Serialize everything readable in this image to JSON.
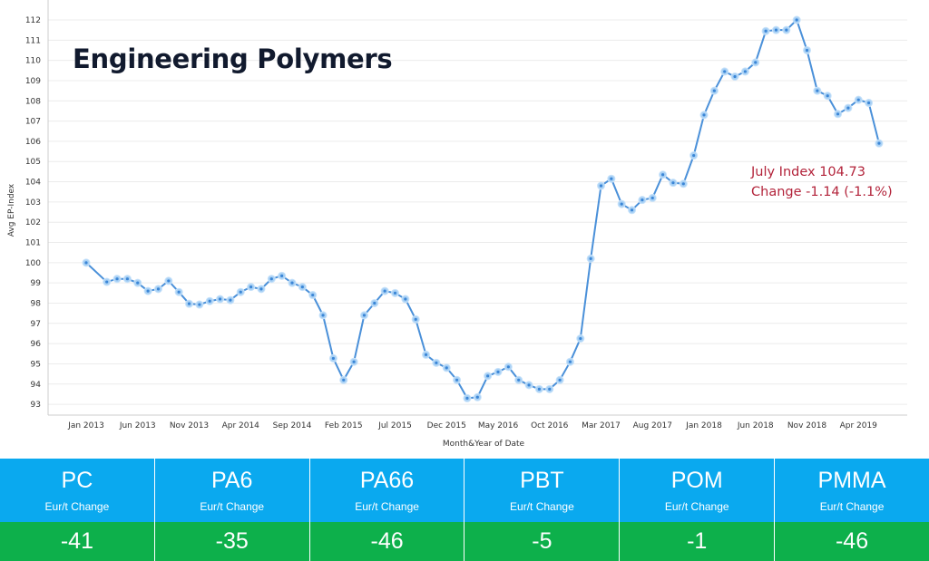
{
  "title": "Engineering Polymers",
  "annotation": {
    "line1": "July Index 104.73",
    "line2": "Change -1.14 (-1.1%)"
  },
  "chart_data": {
    "type": "line",
    "title": "Engineering Polymers",
    "xlabel": "Month&Year of Date",
    "ylabel": "Avg EP-Index",
    "ylim": [
      93,
      112
    ],
    "yticks": [
      93,
      94,
      95,
      96,
      97,
      98,
      99,
      100,
      101,
      102,
      103,
      104,
      105,
      106,
      107,
      108,
      109,
      110,
      111,
      112
    ],
    "xtick_labels": [
      "Jan 2013",
      "Jun 2013",
      "Nov 2013",
      "Apr 2014",
      "Sep 2014",
      "Feb 2015",
      "Jul 2015",
      "Dec 2015",
      "May 2016",
      "Oct 2016",
      "Mar 2017",
      "Aug 2017",
      "Jan 2018",
      "Jun 2018",
      "Nov 2018",
      "Apr 2019"
    ],
    "grid": true,
    "series": [
      {
        "name": "Avg EP-Index",
        "color": "#4a90d9",
        "x": [
          "2013-01",
          "2013-03",
          "2013-04",
          "2013-05",
          "2013-06",
          "2013-07",
          "2013-08",
          "2013-09",
          "2013-10",
          "2013-11",
          "2013-12",
          "2014-01",
          "2014-02",
          "2014-03",
          "2014-04",
          "2014-05",
          "2014-06",
          "2014-07",
          "2014-08",
          "2014-09",
          "2014-10",
          "2014-11",
          "2014-12",
          "2015-01",
          "2015-02",
          "2015-03",
          "2015-04",
          "2015-05",
          "2015-06",
          "2015-07",
          "2015-08",
          "2015-09",
          "2015-10",
          "2015-11",
          "2015-12",
          "2016-01",
          "2016-02",
          "2016-03",
          "2016-04",
          "2016-05",
          "2016-06",
          "2016-07",
          "2016-08",
          "2016-09",
          "2016-10",
          "2016-11",
          "2016-12",
          "2017-01",
          "2017-02",
          "2017-03",
          "2017-04",
          "2017-05",
          "2017-06",
          "2017-07",
          "2017-08",
          "2017-09",
          "2017-10",
          "2017-11",
          "2017-12",
          "2018-01",
          "2018-02",
          "2018-03",
          "2018-04",
          "2018-05",
          "2018-06",
          "2018-07",
          "2018-08",
          "2018-09",
          "2018-10",
          "2018-11",
          "2018-12",
          "2019-01",
          "2019-02",
          "2019-03",
          "2019-04",
          "2019-05",
          "2019-06"
        ],
        "values": [
          100.0,
          99.05,
          99.2,
          99.2,
          99.0,
          98.6,
          98.7,
          99.1,
          98.55,
          97.97,
          97.93,
          98.1,
          98.2,
          98.15,
          98.55,
          98.8,
          98.7,
          99.2,
          99.35,
          99.0,
          98.8,
          98.4,
          97.4,
          95.27,
          94.2,
          95.1,
          97.4,
          98.0,
          98.6,
          98.5,
          98.2,
          97.2,
          95.45,
          95.05,
          94.8,
          94.2,
          93.3,
          93.35,
          94.4,
          94.6,
          94.85,
          94.2,
          93.95,
          93.75,
          93.75,
          94.2,
          95.1,
          96.25,
          100.2,
          103.8,
          104.15,
          102.9,
          102.6,
          103.1,
          103.2,
          104.35,
          103.95,
          103.9,
          105.3,
          107.3,
          108.5,
          109.45,
          109.2,
          109.45,
          109.9,
          111.45,
          111.5,
          111.5,
          112.0,
          110.5,
          108.5,
          108.25,
          107.35,
          107.65,
          108.05,
          107.9,
          105.9
        ]
      }
    ]
  },
  "table": {
    "colors": {
      "header": "#0aa9ef",
      "value": "#0db04b"
    },
    "columns": [
      {
        "name": "PC",
        "sub": "Eur/t Change",
        "value": "-41"
      },
      {
        "name": "PA6",
        "sub": "Eur/t Change",
        "value": "-35"
      },
      {
        "name": "PA66",
        "sub": "Eur/t Change",
        "value": "-46"
      },
      {
        "name": "PBT",
        "sub": "Eur/t Change",
        "value": "-5"
      },
      {
        "name": "POM",
        "sub": "Eur/t Change",
        "value": "-1"
      },
      {
        "name": "PMMA",
        "sub": "Eur/t Change",
        "value": "-46"
      }
    ]
  }
}
